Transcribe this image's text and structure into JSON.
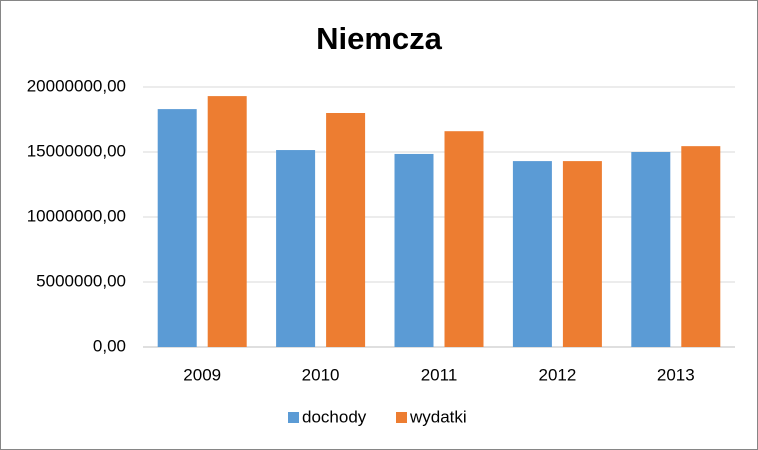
{
  "chart_data": {
    "type": "bar",
    "title": "Niemcza",
    "categories": [
      "2009",
      "2010",
      "2011",
      "2012",
      "2013"
    ],
    "series": [
      {
        "name": "dochody",
        "color": "#5b9bd5",
        "values": [
          18300000,
          15150000,
          14850000,
          14300000,
          15000000
        ]
      },
      {
        "name": "wydatki",
        "color": "#ed7d31",
        "values": [
          19300000,
          18000000,
          16600000,
          14300000,
          15450000
        ]
      }
    ],
    "ylim": [
      0,
      20000000
    ],
    "yticks": [
      {
        "value": 0,
        "label": "0,00"
      },
      {
        "value": 5000000,
        "label": "5000000,00"
      },
      {
        "value": 10000000,
        "label": "10000000,00"
      },
      {
        "value": 15000000,
        "label": "15000000,00"
      },
      {
        "value": 20000000,
        "label": "20000000,00"
      }
    ],
    "grid": true,
    "legend": "bottom"
  }
}
